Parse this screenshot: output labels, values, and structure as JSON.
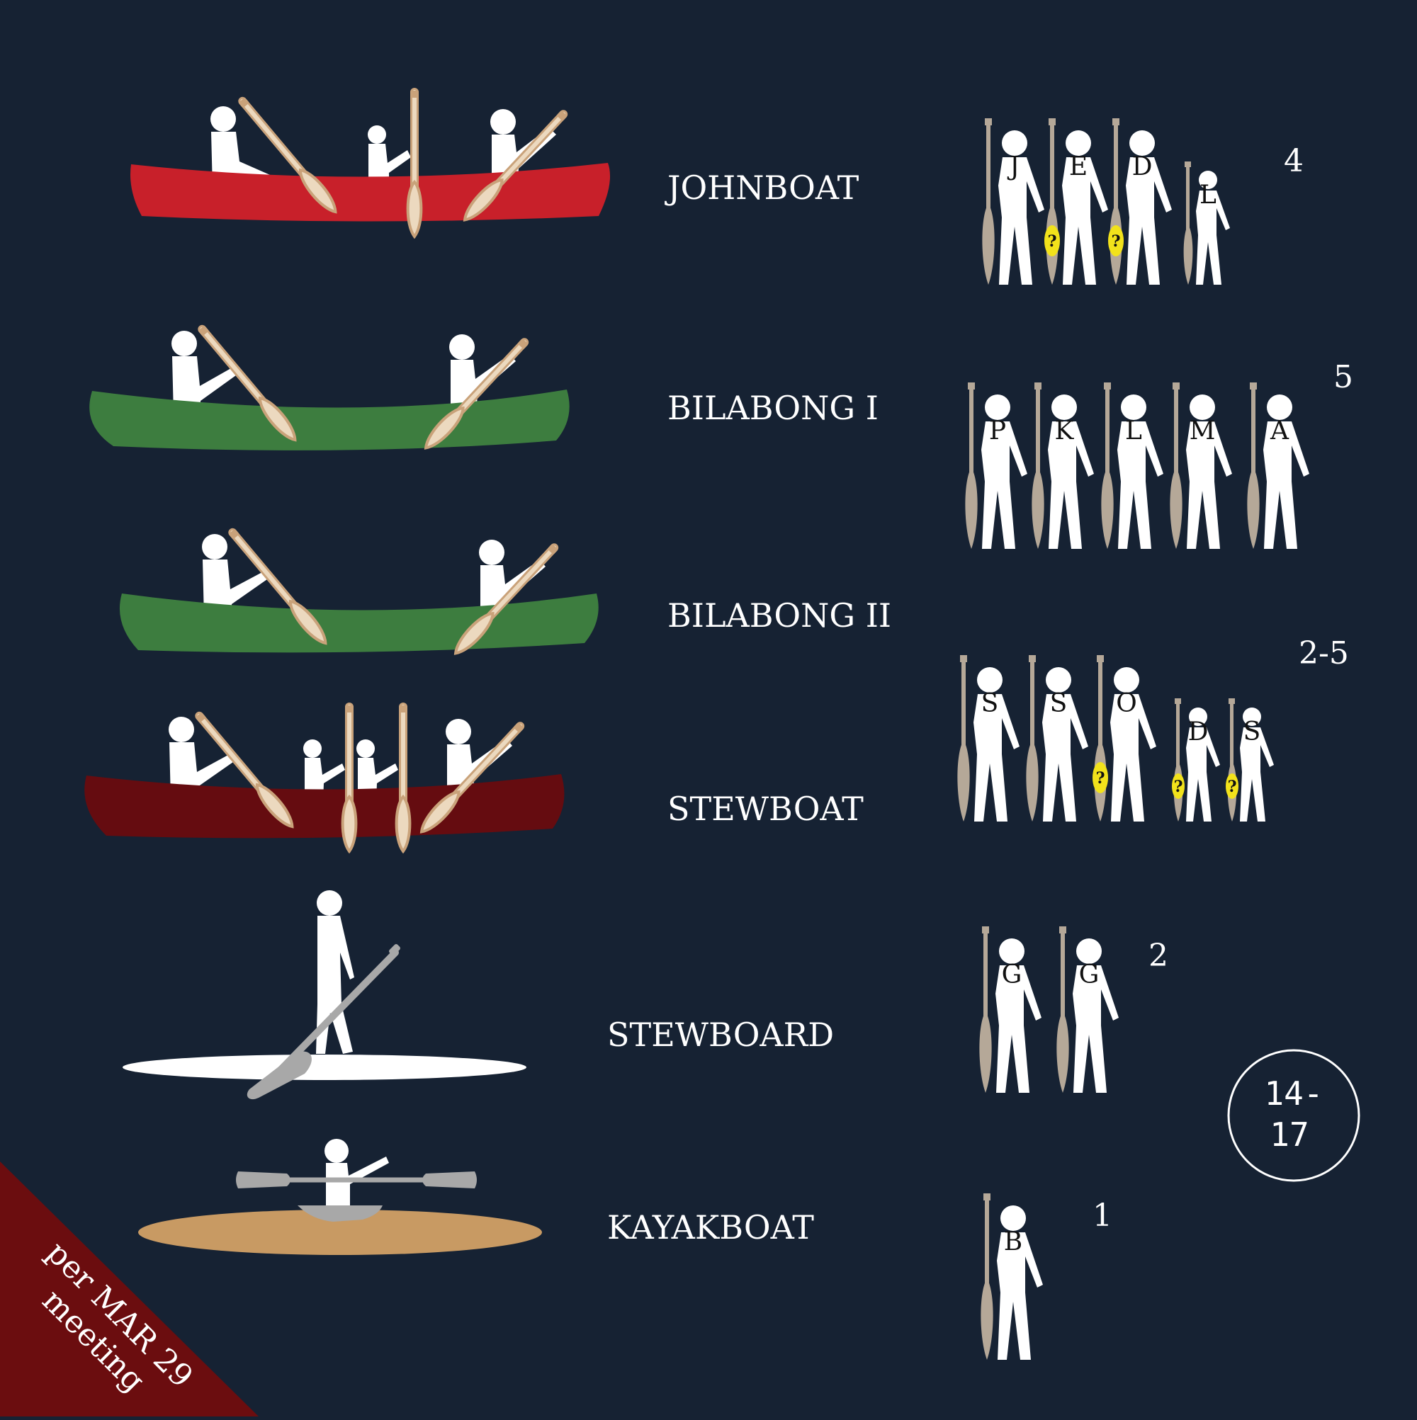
{
  "colors": {
    "background": "#162233",
    "figure": "#ffffff",
    "paddle": "#b5a898",
    "paddle_outline": "#c9a27a",
    "unsure_marker": "#f2e21b",
    "ribbon": "#6b0d0f"
  },
  "boats": [
    {
      "name": "JOHNBOAT",
      "hull_color": "#c8202a",
      "paddlers": [
        {
          "initial": "J",
          "unsure": false,
          "child": false
        },
        {
          "initial": "E",
          "unsure": true,
          "child": false
        },
        {
          "initial": "D",
          "unsure": true,
          "child": false
        },
        {
          "initial": "L",
          "unsure": false,
          "child": true
        }
      ],
      "count": "4"
    },
    {
      "name": "BILABONG I",
      "hull_color": "#3d7d3f",
      "paddlers": [
        {
          "initial": "P",
          "unsure": false,
          "child": false
        },
        {
          "initial": "K",
          "unsure": false,
          "child": false
        },
        {
          "initial": "L",
          "unsure": false,
          "child": false
        },
        {
          "initial": "M",
          "unsure": false,
          "child": false
        },
        {
          "initial": "A",
          "unsure": false,
          "child": false
        }
      ],
      "count": "5"
    },
    {
      "name": "BILABONG II",
      "hull_color": "#3d7d3f",
      "paddlers": [],
      "count": ""
    },
    {
      "name": "STEWBOAT",
      "hull_color": "#650c10",
      "paddlers": [
        {
          "initial": "S",
          "unsure": false,
          "child": false
        },
        {
          "initial": "S",
          "unsure": false,
          "child": false
        },
        {
          "initial": "O",
          "unsure": true,
          "child": false
        },
        {
          "initial": "D",
          "unsure": true,
          "child": true
        },
        {
          "initial": "S",
          "unsure": true,
          "child": true
        }
      ],
      "count": "2-5"
    },
    {
      "name": "STEWBOARD",
      "hull_color": "#ffffff",
      "paddlers": [
        {
          "initial": "G",
          "unsure": false,
          "child": false
        },
        {
          "initial": "G",
          "unsure": false,
          "child": false
        }
      ],
      "count": "2"
    },
    {
      "name": "KAYAKBOAT",
      "hull_color": "#c89a63",
      "paddlers": [
        {
          "initial": "B",
          "unsure": false,
          "child": false
        }
      ],
      "count": "1"
    }
  ],
  "unsure_symbol": "?",
  "total": {
    "line1": "14-",
    "line2": "17"
  },
  "ribbon": {
    "line1": "per MAR 29",
    "line2": "meeting"
  }
}
